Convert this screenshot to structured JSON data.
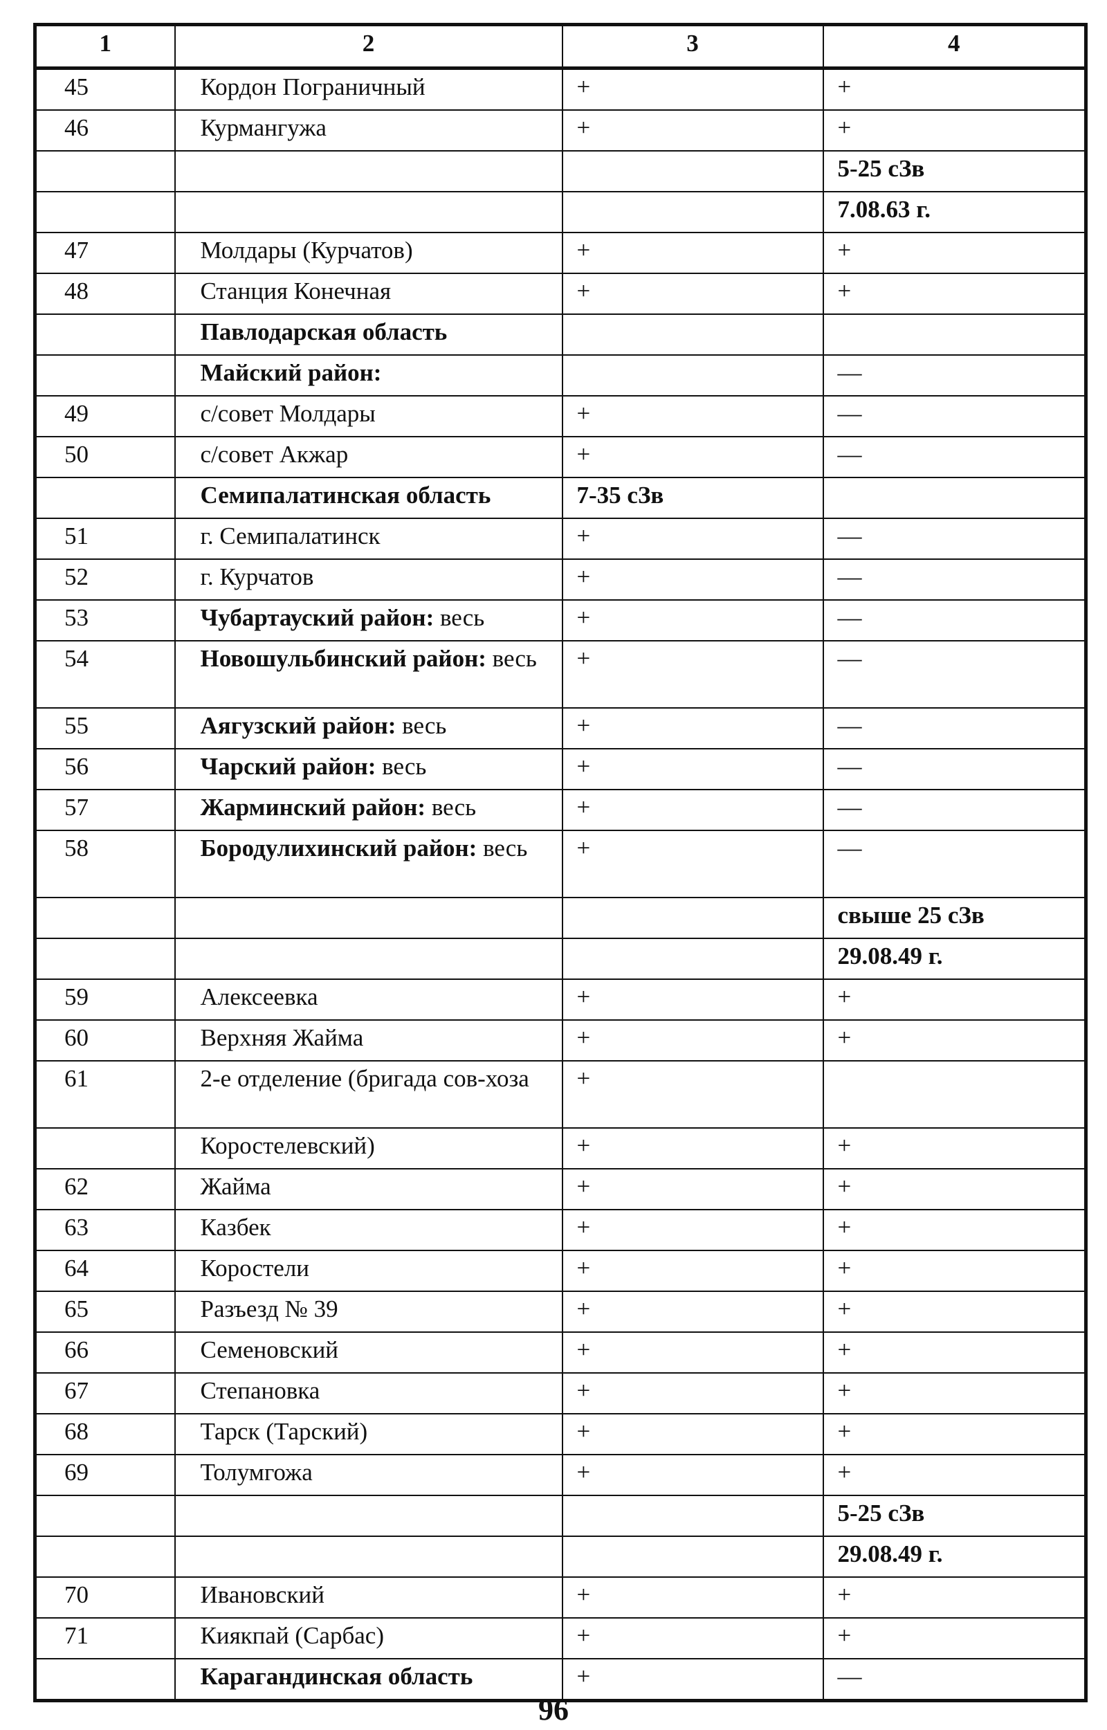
{
  "header": [
    "1",
    "2",
    "3",
    "4"
  ],
  "rows": [
    {
      "n": "45",
      "b": "",
      "t": "Кордон Пограничный",
      "c3": "+",
      "c4": "+"
    },
    {
      "n": "46",
      "b": "",
      "t": "Курмангужа",
      "c3": "+",
      "c4": "+"
    },
    {
      "n": "",
      "b": "",
      "t": "",
      "c3": "",
      "c4": "5-25 сЗв"
    },
    {
      "n": "",
      "b": "",
      "t": "",
      "c3": "",
      "c4": "7.08.63 г."
    },
    {
      "n": "47",
      "b": "",
      "t": "Молдары (Курчатов)",
      "c3": "+",
      "c4": "+"
    },
    {
      "n": "48",
      "b": "",
      "t": "Станция Конечная",
      "c3": "+",
      "c4": "+"
    },
    {
      "n": "",
      "b": "Павлодарская область",
      "t": "",
      "c3": "",
      "c4": ""
    },
    {
      "n": "",
      "b": "Майский район:",
      "t": "",
      "c3": "",
      "c4": "—"
    },
    {
      "n": "49",
      "b": "",
      "t": "с/совет Молдары",
      "c3": "+",
      "c4": "—"
    },
    {
      "n": "50",
      "b": "",
      "t": "с/совет Акжар",
      "c3": "+",
      "c4": "—"
    },
    {
      "n": "",
      "b": "Семипалатинская область",
      "t": "",
      "c3": "7-35 сЗв",
      "c4": ""
    },
    {
      "n": "51",
      "b": "",
      "t": "г. Семипалатинск",
      "c3": "+",
      "c4": "—"
    },
    {
      "n": "52",
      "b": "",
      "t": "г. Курчатов",
      "c3": "+",
      "c4": "—"
    },
    {
      "n": "53",
      "b": "Чубартауский район:",
      "t": " весь",
      "c3": "+",
      "c4": "—"
    },
    {
      "n": "54",
      "b": "Новошульбинский район:",
      "t": " весь",
      "c3": "+",
      "c4": "—",
      "tall": true
    },
    {
      "n": "55",
      "b": "Аягузский район:",
      "t": " весь",
      "c3": "+",
      "c4": "—"
    },
    {
      "n": "56",
      "b": "Чарский район:",
      "t": " весь",
      "c3": "+",
      "c4": "—"
    },
    {
      "n": "57",
      "b": "Жарминский район:",
      "t": " весь",
      "c3": "+",
      "c4": "—"
    },
    {
      "n": "58",
      "b": "Бородулихинский район:",
      "t": " весь",
      "c3": "+",
      "c4": "—",
      "tall": true
    },
    {
      "n": "",
      "b": "",
      "t": "",
      "c3": "",
      "c4": "свыше 25 сЗв"
    },
    {
      "n": "",
      "b": "",
      "t": "",
      "c3": "",
      "c4": "29.08.49 г."
    },
    {
      "n": "59",
      "b": "",
      "t": "Алексеевка",
      "c3": "+",
      "c4": "+"
    },
    {
      "n": "60",
      "b": "",
      "t": "Верхняя Жайма",
      "c3": "+",
      "c4": "+"
    },
    {
      "n": "61",
      "b": "",
      "t": "2-е отделение (бригада сов-хоза",
      "c3": "+",
      "c4": "",
      "tall": true
    },
    {
      "n": "",
      "b": "",
      "t": "Коростелевский)",
      "c3": "+",
      "c4": "+"
    },
    {
      "n": "62",
      "b": "",
      "t": "Жайма",
      "c3": "+",
      "c4": "+"
    },
    {
      "n": "63",
      "b": "",
      "t": "Казбек",
      "c3": "+",
      "c4": "+"
    },
    {
      "n": "64",
      "b": "",
      "t": "Коростели",
      "c3": "+",
      "c4": "+"
    },
    {
      "n": "65",
      "b": "",
      "t": "Разъезд № 39",
      "c3": "+",
      "c4": "+"
    },
    {
      "n": "66",
      "b": "",
      "t": "Семеновский",
      "c3": "+",
      "c4": "+"
    },
    {
      "n": "67",
      "b": "",
      "t": "Степановка",
      "c3": "+",
      "c4": "+"
    },
    {
      "n": "68",
      "b": "",
      "t": "Тарск (Тарский)",
      "c3": "+",
      "c4": "+"
    },
    {
      "n": "69",
      "b": "",
      "t": "Толумгожа",
      "c3": "+",
      "c4": "+"
    },
    {
      "n": "",
      "b": "",
      "t": "",
      "c3": "",
      "c4": "5-25 сЗв"
    },
    {
      "n": "",
      "b": "",
      "t": "",
      "c3": "",
      "c4": "29.08.49 г."
    },
    {
      "n": "70",
      "b": "",
      "t": "Ивановский",
      "c3": "+",
      "c4": "+"
    },
    {
      "n": "71",
      "b": "",
      "t": "Кияк­пай (Сарбас)",
      "c3": "+",
      "c4": "+"
    },
    {
      "n": "",
      "b": "Карагандинская область",
      "t": "",
      "c3": "+",
      "c4": "—"
    }
  ],
  "page_number": "96"
}
